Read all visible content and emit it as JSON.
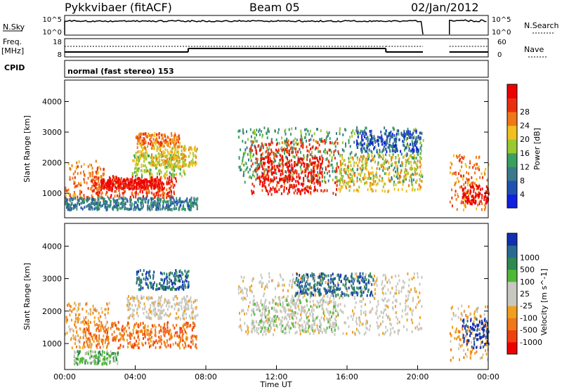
{
  "header": {
    "radar": "Pykkvibaer (fitACF)",
    "beam": "Beam 05",
    "date": "02/Jan/2012"
  },
  "nsky_panel": {
    "left_label": "N.Sky",
    "left_ticks": [
      "10^5",
      "10^0"
    ],
    "right_ticks": [
      "10^5",
      "10^0"
    ],
    "right_label": "N.Search"
  },
  "freq_panel": {
    "left_label_line1": "Freq.",
    "left_label_line2": "[MHz]",
    "left_ticks": [
      "18",
      "8"
    ],
    "right_ticks": [
      "60",
      "0"
    ],
    "right_label": "Nave"
  },
  "cpid": {
    "label": "CPID",
    "text": "normal (fast stereo) 153"
  },
  "power_panel": {
    "ylabel": "Slant Range [km]",
    "y_ticks": [
      1000,
      2000,
      3000,
      4000
    ],
    "ylim": [
      200,
      4700
    ],
    "colorbar_label": "Power [dB]",
    "colorbar_ticks": [
      "4",
      "8",
      "12",
      "16",
      "20",
      "24",
      "28"
    ],
    "colors": [
      "#1020e0",
      "#2050b0",
      "#3a7a8a",
      "#3aa060",
      "#9ac830",
      "#f0c020",
      "#f07818",
      "#e83010",
      "#ee0000"
    ]
  },
  "velocity_panel": {
    "ylabel": "Slant Range [km]",
    "y_ticks": [
      1000,
      2000,
      3000,
      4000
    ],
    "ylim": [
      200,
      4700
    ],
    "colorbar_label": "Velocity [m s^-1]",
    "colorbar_ticks": [
      "-1000",
      "-500",
      "-100",
      "-25",
      "25",
      "100",
      "500",
      "1000"
    ],
    "colors": [
      "#ee0000",
      "#f04010",
      "#f07818",
      "#f0a020",
      "#c8c8c0",
      "#c8c8c0",
      "#50b838",
      "#2e8a50",
      "#2a6a90",
      "#1030b0"
    ]
  },
  "x_axis": {
    "label": "Time UT",
    "ticks": [
      "00:00",
      "04:00",
      "08:00",
      "12:00",
      "16:00",
      "20:00",
      "00:00"
    ]
  },
  "chart_data": {
    "type": "heatmap",
    "x_range_hours": [
      0,
      24
    ],
    "y_range_km": [
      200,
      4700
    ],
    "data_gaps_hours": [
      [
        20.3,
        21.8
      ]
    ],
    "frequency_steps": [
      {
        "t_start": 0.0,
        "t_end": 7.0,
        "freq_level": "low"
      },
      {
        "t_start": 7.0,
        "t_end": 18.2,
        "freq_level": "high"
      },
      {
        "t_start": 18.2,
        "t_end": 20.3,
        "freq_level": "low"
      },
      {
        "t_start": 21.8,
        "t_end": 24.0,
        "freq_level": "low"
      }
    ],
    "power_regions": [
      {
        "t0": 0.0,
        "t1": 2.2,
        "r0": 800,
        "r1": 2100,
        "level": 6
      },
      {
        "t0": 1.5,
        "t1": 6.3,
        "r0": 900,
        "r1": 1600,
        "level": 7
      },
      {
        "t0": 2.0,
        "t1": 5.5,
        "r0": 1200,
        "r1": 1500,
        "level": 8
      },
      {
        "t0": 3.8,
        "t1": 6.8,
        "r0": 1600,
        "r1": 2300,
        "level": 4
      },
      {
        "t0": 4.0,
        "t1": 7.5,
        "r0": 1900,
        "r1": 2600,
        "level": 5
      },
      {
        "t0": 4.0,
        "t1": 6.5,
        "r0": 2600,
        "r1": 3000,
        "level": 6
      },
      {
        "t0": 0.0,
        "t1": 7.5,
        "r0": 500,
        "r1": 900,
        "level": 2
      },
      {
        "t0": 9.8,
        "t1": 20.3,
        "r0": 1400,
        "r1": 3200,
        "level": 3
      },
      {
        "t0": 10.5,
        "t1": 15.5,
        "r0": 1000,
        "r1": 2800,
        "level": 7
      },
      {
        "t0": 11.0,
        "t1": 14.5,
        "r0": 1100,
        "r1": 2200,
        "level": 8
      },
      {
        "t0": 15.5,
        "t1": 20.2,
        "r0": 1100,
        "r1": 2300,
        "level": 5
      },
      {
        "t0": 16.5,
        "t1": 20.2,
        "r0": 2400,
        "r1": 3100,
        "level": 1
      },
      {
        "t0": 21.8,
        "t1": 24.0,
        "r0": 500,
        "r1": 2300,
        "level": 6
      },
      {
        "t0": 22.5,
        "t1": 24.0,
        "r0": 700,
        "r1": 1300,
        "level": 8
      }
    ],
    "velocity_regions": [
      {
        "t0": 0.0,
        "t1": 2.5,
        "r0": 900,
        "r1": 2300,
        "level": 3
      },
      {
        "t0": 1.0,
        "t1": 7.5,
        "r0": 900,
        "r1": 1700,
        "level": 2
      },
      {
        "t0": 0.5,
        "t1": 3.0,
        "r0": 400,
        "r1": 800,
        "level": 6
      },
      {
        "t0": 3.5,
        "t1": 7.5,
        "r0": 1800,
        "r1": 2500,
        "level": 4
      },
      {
        "t0": 4.0,
        "t1": 7.0,
        "r0": 2700,
        "r1": 3300,
        "level": 8
      },
      {
        "t0": 9.8,
        "t1": 20.2,
        "r0": 1300,
        "r1": 3200,
        "level": 4
      },
      {
        "t0": 10.5,
        "t1": 15.5,
        "r0": 1400,
        "r1": 2400,
        "level": 5
      },
      {
        "t0": 13.0,
        "t1": 17.5,
        "r0": 2500,
        "r1": 3200,
        "level": 8
      },
      {
        "t0": 21.8,
        "t1": 24.0,
        "r0": 500,
        "r1": 2200,
        "level": 3
      },
      {
        "t0": 22.5,
        "t1": 24.0,
        "r0": 900,
        "r1": 1800,
        "level": 9
      }
    ]
  }
}
